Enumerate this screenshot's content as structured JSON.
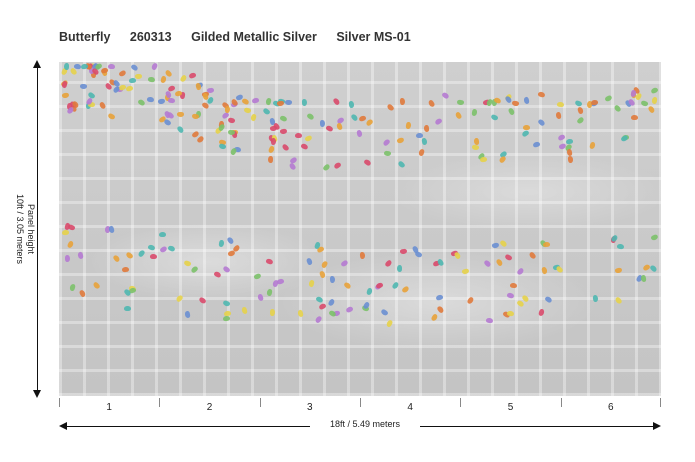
{
  "header": {
    "pattern": "Butterfly",
    "code": "260313",
    "finish": "Gilded Metallic Silver",
    "colorway": "Silver MS-01"
  },
  "dimensions": {
    "height_label_line1": "Panel height",
    "height_label_line2": "10ft / 3.05 meters",
    "width_label": "18ft / 5.49 meters"
  },
  "panels": [
    "1",
    "2",
    "3",
    "4",
    "5",
    "6"
  ],
  "colors": {
    "background": "#c9c9c9",
    "butterflies": [
      "#e8a23a",
      "#d94a6b",
      "#6a8fd1",
      "#7cc16a",
      "#b57ad1",
      "#e6d24a",
      "#4fb7b0",
      "#e07a3c"
    ]
  }
}
